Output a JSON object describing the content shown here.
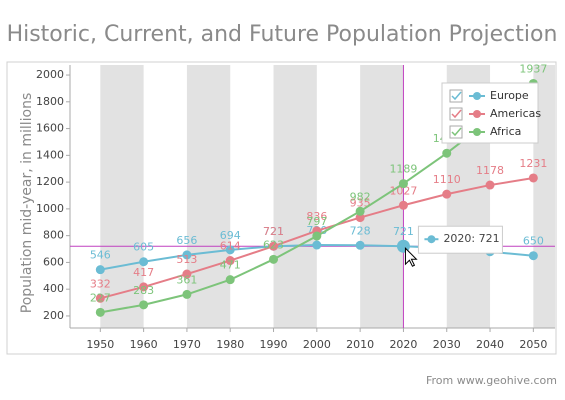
{
  "chart_data": {
    "type": "line",
    "title": "Historic, Current, and Future Population Projection",
    "y_label": "Population mid-year, in millions",
    "source": "From www.geohive.com",
    "x": [
      1950,
      1960,
      1970,
      1980,
      1990,
      2000,
      2010,
      2020,
      2030,
      2040,
      2050
    ],
    "series": [
      {
        "name": "Europe",
        "color": "#6bbcd4",
        "values": [
          546,
          605,
          656,
          694,
          721,
          730,
          728,
          721,
          707,
          680,
          650
        ]
      },
      {
        "name": "Americas",
        "color": "#e57d87",
        "values": [
          332,
          417,
          513,
          614,
          721,
          836,
          935,
          1027,
          1110,
          1178,
          1231
        ]
      },
      {
        "name": "Africa",
        "color": "#7dc47a",
        "values": [
          227,
          283,
          361,
          471,
          623,
          797,
          982,
          1189,
          1416,
          1665,
          1937
        ]
      }
    ],
    "xlim": [
      1943,
      2055
    ],
    "xticks": [
      1950,
      1960,
      1970,
      1980,
      1990,
      2000,
      2010,
      2020,
      2030,
      2040,
      2050
    ],
    "ylim": [
      110,
      2075
    ],
    "yticks": [
      200,
      400,
      600,
      800,
      1000,
      1200,
      1400,
      1600,
      1800,
      2000
    ],
    "crosshair": {
      "x": 2020,
      "y": 721,
      "label": "2020: 721",
      "color": "#c040c0"
    },
    "legend": "top-right"
  }
}
